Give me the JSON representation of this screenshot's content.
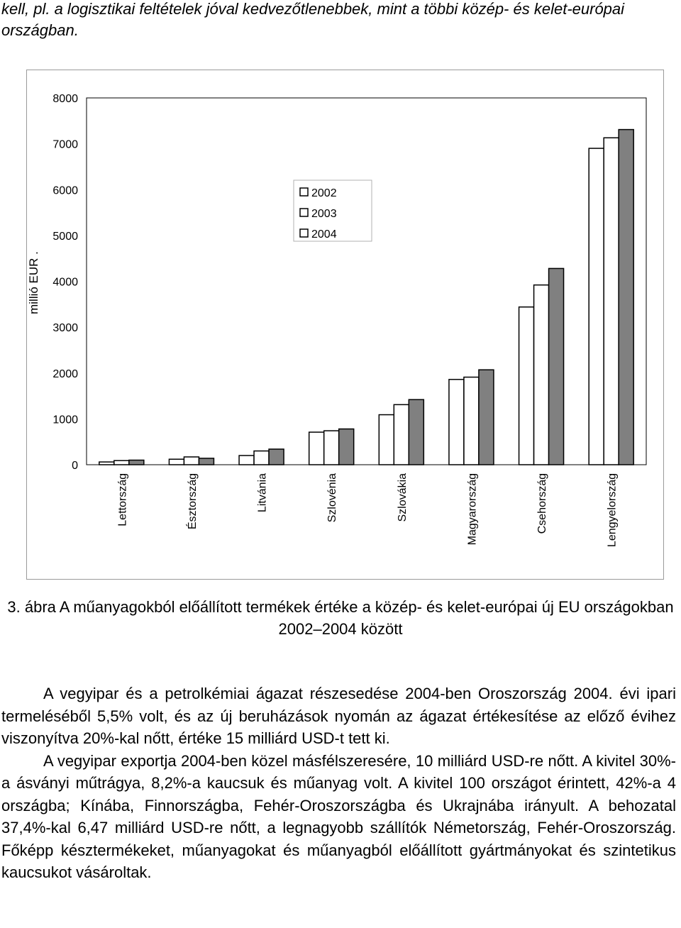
{
  "intro_text": "kell, pl. a logisztikai feltételek jóval kedvezőtlenebbek, mint a többi közép- és kelet-európai országban.",
  "colors": {
    "bar_2002": "#ffffff",
    "bar_2003": "#ffffff",
    "bar_2004": "#808080",
    "axis": "#000000",
    "frame": "#9a9a9a"
  },
  "chart_data": {
    "type": "bar",
    "title": "",
    "xlabel": "",
    "ylabel": "millió EUR .",
    "ylim": [
      0,
      8000
    ],
    "yticks": [
      0,
      1000,
      2000,
      3000,
      4000,
      5000,
      6000,
      7000,
      8000
    ],
    "grid": false,
    "legend_position": "top-center",
    "categories": [
      "Lettország",
      "Észtország",
      "Litvánia",
      "Szlovénia",
      "Szlovákia",
      "Magyarország",
      "Csehország",
      "Lengyelország"
    ],
    "series": [
      {
        "name": "2002",
        "values": [
          60,
          120,
          200,
          710,
          1090,
          1860,
          3440,
          6900
        ]
      },
      {
        "name": "2003",
        "values": [
          90,
          170,
          300,
          740,
          1310,
          1910,
          3920,
          7130
        ]
      },
      {
        "name": "2004",
        "values": [
          100,
          140,
          340,
          780,
          1420,
          2070,
          4280,
          7310
        ]
      }
    ]
  },
  "caption": "3. ábra A műanyagokból előállított termékek értéke a közép- és kelet-európai új EU országokban 2002–2004 között",
  "paragraphs": [
    "A vegyipar és a petrolkémiai ágazat részesedése 2004-ben Oroszország 2004. évi ipari termeléséből 5,5% volt, és az új beruházások nyomán az ágazat értékesítése az előző évihez viszonyítva 20%-kal nőtt, értéke 15 milliárd USD-t tett ki.",
    "A vegyipar exportja 2004-ben közel másfélszeresére, 10 milliárd USD-re nőtt. A kivitel 30%-a ásványi műtrágya, 8,2%-a kaucsuk és műanyag volt. A kivitel 100 országot érintett, 42%-a 4 országba; Kínába, Finnországba, Fehér-Oroszországba és Ukrajnába irányult. A behozatal 37,4%-kal 6,47 milliárd USD-re nőtt, a legnagyobb szállítók Németország, Fehér-Oroszország. Főképp késztermékeket, műanyagokat és műanyagból előállított gyártmányokat és szintetikus kaucsukot vásároltak."
  ]
}
